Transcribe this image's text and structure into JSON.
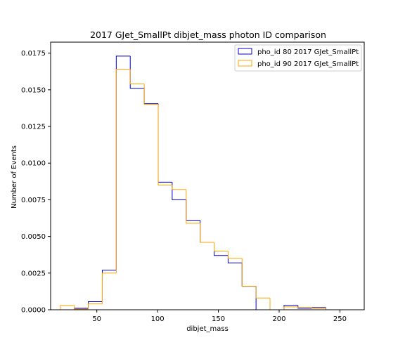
{
  "chart_data": {
    "type": "histogram",
    "title": "2017 GJet_SmallPt dibjet_mass photon ID comparison",
    "xlabel": "dibjet_mass",
    "ylabel": "Number of Events",
    "xlim": [
      12,
      270
    ],
    "ylim": [
      0,
      0.01825
    ],
    "x_ticks": [
      {
        "value": 50,
        "label": "50"
      },
      {
        "value": 100,
        "label": "100"
      },
      {
        "value": 150,
        "label": "150"
      },
      {
        "value": 200,
        "label": "200"
      },
      {
        "value": 250,
        "label": "250"
      }
    ],
    "y_ticks": [
      {
        "value": 0.0,
        "label": "0.0000"
      },
      {
        "value": 0.0025,
        "label": "0.0025"
      },
      {
        "value": 0.005,
        "label": "0.0050"
      },
      {
        "value": 0.0075,
        "label": "0.0075"
      },
      {
        "value": 0.01,
        "label": "0.0100"
      },
      {
        "value": 0.0125,
        "label": "0.0125"
      },
      {
        "value": 0.015,
        "label": "0.0150"
      },
      {
        "value": 0.0175,
        "label": "0.0175"
      }
    ],
    "bin_edges": [
      20,
      31.5,
      43,
      54.5,
      66,
      77.5,
      89,
      100.5,
      112,
      123.5,
      135,
      146.5,
      158,
      169.5,
      181,
      192.5,
      204,
      215.5,
      227,
      238.5
    ],
    "series": [
      {
        "name": "pho_id 80 2017 GJet_SmallPt",
        "color": "#0000cc",
        "values": [
          0.0,
          0.0001,
          0.00055,
          0.0027,
          0.0173,
          0.0151,
          0.01405,
          0.0087,
          0.0075,
          0.0061,
          0.0046,
          0.0037,
          0.0032,
          0.0016,
          0.0,
          0.0,
          0.0003,
          0.0001,
          0.00015
        ]
      },
      {
        "name": "pho_id 90 2017 GJet_SmallPt",
        "color": "#ffa500",
        "values": [
          0.0003,
          5e-05,
          0.0004,
          0.0025,
          0.0164,
          0.0154,
          0.014,
          0.0085,
          0.0082,
          0.0059,
          0.0046,
          0.004,
          0.0035,
          0.0016,
          0.0008,
          0.0,
          0.0002,
          0.00015,
          0.0001
        ]
      }
    ],
    "legend_position": "upper-right",
    "grid": false
  }
}
